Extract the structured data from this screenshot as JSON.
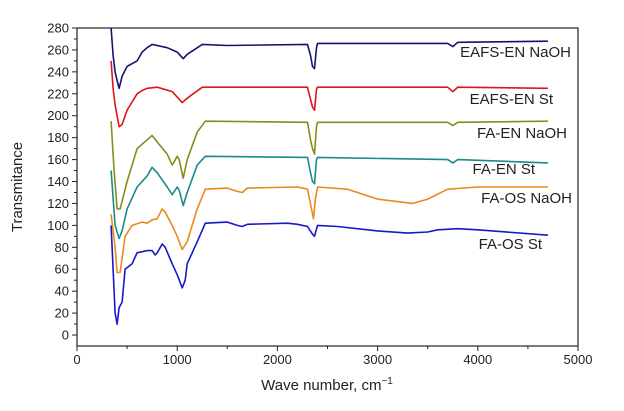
{
  "chart_data": {
    "type": "line",
    "title": "",
    "xlabel": "Wave number, cm",
    "xlabel_superscript": "−1",
    "ylabel": "Transmitance",
    "xlim": [
      0,
      5000
    ],
    "ylim": [
      -10,
      280
    ],
    "xticks": [
      0,
      1000,
      2000,
      3000,
      4000,
      5000
    ],
    "yticks": [
      0,
      20,
      40,
      60,
      80,
      100,
      120,
      140,
      160,
      180,
      200,
      220,
      240,
      260,
      280
    ],
    "grid": false,
    "legend": "inline labels at right end of each curve",
    "series": [
      {
        "name": "EAFS-EN NaOH",
        "color": "#14146e",
        "points": [
          [
            340,
            280
          ],
          [
            360,
            255
          ],
          [
            380,
            240
          ],
          [
            400,
            232
          ],
          [
            420,
            225
          ],
          [
            450,
            236
          ],
          [
            500,
            245
          ],
          [
            600,
            250
          ],
          [
            650,
            258
          ],
          [
            700,
            262
          ],
          [
            750,
            265
          ],
          [
            900,
            262
          ],
          [
            1000,
            258
          ],
          [
            1060,
            252
          ],
          [
            1100,
            256
          ],
          [
            1250,
            265
          ],
          [
            1500,
            264
          ],
          [
            2300,
            265
          ],
          [
            2330,
            255
          ],
          [
            2350,
            245
          ],
          [
            2370,
            243
          ],
          [
            2390,
            262
          ],
          [
            2400,
            266
          ],
          [
            3700,
            266
          ],
          [
            3750,
            263
          ],
          [
            3800,
            267
          ],
          [
            4700,
            268
          ]
        ]
      },
      {
        "name": "EAFS-EN St",
        "color": "#e0141a",
        "points": [
          [
            340,
            250
          ],
          [
            360,
            225
          ],
          [
            380,
            210
          ],
          [
            420,
            190
          ],
          [
            450,
            192
          ],
          [
            500,
            205
          ],
          [
            600,
            220
          ],
          [
            650,
            223
          ],
          [
            700,
            225
          ],
          [
            800,
            226
          ],
          [
            950,
            222
          ],
          [
            1050,
            212
          ],
          [
            1100,
            216
          ],
          [
            1250,
            226
          ],
          [
            2300,
            226
          ],
          [
            2330,
            215
          ],
          [
            2350,
            208
          ],
          [
            2370,
            205
          ],
          [
            2390,
            224
          ],
          [
            2400,
            226
          ],
          [
            3700,
            226
          ],
          [
            3750,
            222
          ],
          [
            3800,
            226
          ],
          [
            4700,
            225
          ]
        ]
      },
      {
        "name": "FA-EN NaOH",
        "color": "#8a8a1e",
        "points": [
          [
            340,
            195
          ],
          [
            370,
            150
          ],
          [
            400,
            115
          ],
          [
            430,
            115
          ],
          [
            500,
            140
          ],
          [
            600,
            170
          ],
          [
            700,
            178
          ],
          [
            750,
            182
          ],
          [
            800,
            176
          ],
          [
            900,
            165
          ],
          [
            950,
            155
          ],
          [
            1000,
            163
          ],
          [
            1020,
            160
          ],
          [
            1060,
            143
          ],
          [
            1100,
            160
          ],
          [
            1200,
            185
          ],
          [
            1280,
            195
          ],
          [
            2300,
            194
          ],
          [
            2330,
            178
          ],
          [
            2350,
            170
          ],
          [
            2370,
            165
          ],
          [
            2390,
            190
          ],
          [
            2400,
            194
          ],
          [
            3700,
            194
          ],
          [
            3750,
            191
          ],
          [
            3800,
            194
          ],
          [
            4700,
            195
          ]
        ]
      },
      {
        "name": "FA-EN St",
        "color": "#1a8a8a",
        "points": [
          [
            340,
            150
          ],
          [
            380,
            100
          ],
          [
            420,
            88
          ],
          [
            450,
            95
          ],
          [
            500,
            115
          ],
          [
            600,
            135
          ],
          [
            700,
            145
          ],
          [
            750,
            153
          ],
          [
            800,
            148
          ],
          [
            900,
            135
          ],
          [
            950,
            128
          ],
          [
            1000,
            135
          ],
          [
            1020,
            132
          ],
          [
            1060,
            118
          ],
          [
            1100,
            130
          ],
          [
            1200,
            155
          ],
          [
            1280,
            163
          ],
          [
            2300,
            162
          ],
          [
            2330,
            148
          ],
          [
            2350,
            140
          ],
          [
            2370,
            138
          ],
          [
            2390,
            160
          ],
          [
            2400,
            162
          ],
          [
            3700,
            160
          ],
          [
            3750,
            157
          ],
          [
            3800,
            160
          ],
          [
            4700,
            157
          ]
        ]
      },
      {
        "name": "FA-OS NaOH",
        "color": "#ea8a1e",
        "points": [
          [
            340,
            110
          ],
          [
            380,
            80
          ],
          [
            400,
            57
          ],
          [
            430,
            57
          ],
          [
            450,
            70
          ],
          [
            480,
            90
          ],
          [
            550,
            100
          ],
          [
            650,
            103
          ],
          [
            700,
            102
          ],
          [
            750,
            105
          ],
          [
            800,
            106
          ],
          [
            850,
            115
          ],
          [
            880,
            112
          ],
          [
            950,
            100
          ],
          [
            1000,
            90
          ],
          [
            1050,
            78
          ],
          [
            1100,
            85
          ],
          [
            1200,
            115
          ],
          [
            1280,
            133
          ],
          [
            1500,
            134
          ],
          [
            1600,
            131
          ],
          [
            1650,
            130
          ],
          [
            1700,
            134
          ],
          [
            2200,
            135
          ],
          [
            2300,
            133
          ],
          [
            2340,
            115
          ],
          [
            2360,
            106
          ],
          [
            2380,
            125
          ],
          [
            2400,
            135
          ],
          [
            2700,
            133
          ],
          [
            3000,
            124
          ],
          [
            3350,
            120
          ],
          [
            3500,
            124
          ],
          [
            3700,
            133
          ],
          [
            4000,
            135
          ],
          [
            4700,
            135
          ]
        ]
      },
      {
        "name": "FA-OS St",
        "color": "#1818c8",
        "points": [
          [
            340,
            100
          ],
          [
            360,
            60
          ],
          [
            380,
            20
          ],
          [
            400,
            10
          ],
          [
            420,
            25
          ],
          [
            450,
            30
          ],
          [
            480,
            60
          ],
          [
            550,
            65
          ],
          [
            600,
            75
          ],
          [
            700,
            77
          ],
          [
            750,
            77
          ],
          [
            780,
            73
          ],
          [
            800,
            75
          ],
          [
            850,
            83
          ],
          [
            880,
            80
          ],
          [
            950,
            65
          ],
          [
            1000,
            55
          ],
          [
            1050,
            43
          ],
          [
            1080,
            50
          ],
          [
            1100,
            65
          ],
          [
            1200,
            85
          ],
          [
            1280,
            102
          ],
          [
            1500,
            103
          ],
          [
            1600,
            100
          ],
          [
            1650,
            99
          ],
          [
            1700,
            101
          ],
          [
            2100,
            102
          ],
          [
            2200,
            101
          ],
          [
            2300,
            99
          ],
          [
            2350,
            92
          ],
          [
            2370,
            90
          ],
          [
            2400,
            100
          ],
          [
            2600,
            99
          ],
          [
            3000,
            95
          ],
          [
            3300,
            93
          ],
          [
            3500,
            94
          ],
          [
            3600,
            96
          ],
          [
            3800,
            97
          ],
          [
            4000,
            96
          ],
          [
            4700,
            91
          ]
        ]
      }
    ]
  }
}
